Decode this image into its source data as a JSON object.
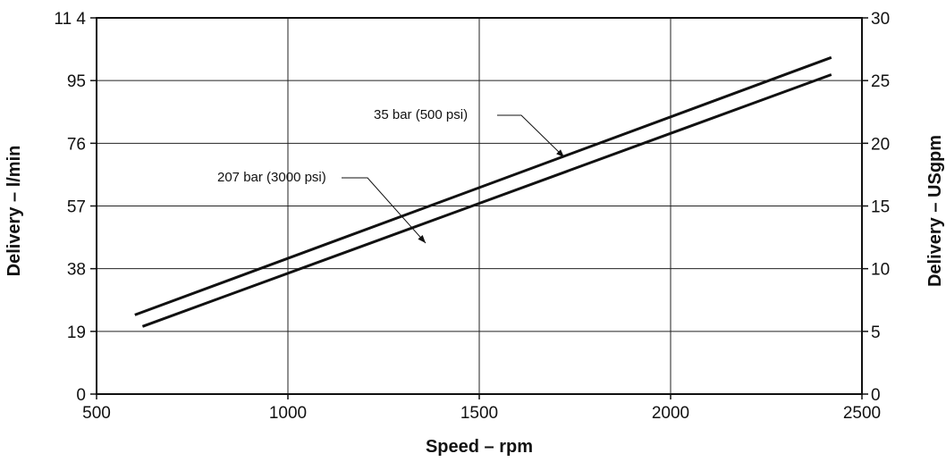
{
  "chart_data": {
    "type": "line",
    "xlabel": "Speed – rpm",
    "ylabel_left": "Delivery – l/min",
    "ylabel_right": "Delivery – USgpm",
    "xlim": [
      500,
      2500
    ],
    "x_ticks": [
      500,
      1000,
      1500,
      2000,
      2500
    ],
    "ylim_left": [
      0,
      114
    ],
    "y_ticks_left": [
      "0",
      "19",
      "38",
      "57",
      "76",
      "95",
      "11 4"
    ],
    "ylim_right": [
      0,
      30
    ],
    "y_ticks_right": [
      "0",
      "5",
      "10",
      "15",
      "20",
      "25",
      "30"
    ],
    "grid": true,
    "series": [
      {
        "name": "35  bar (500 psi)",
        "x": [
          600,
          2420
        ],
        "y": [
          24.0,
          102.0
        ]
      },
      {
        "name": "207 bar (3000 psi)",
        "x": [
          620,
          2420
        ],
        "y": [
          20.5,
          96.8
        ]
      }
    ],
    "annotations": [
      {
        "text": "35  bar (500 psi)",
        "series": 0
      },
      {
        "text": "207 bar (3000 psi)",
        "series": 1
      }
    ]
  }
}
